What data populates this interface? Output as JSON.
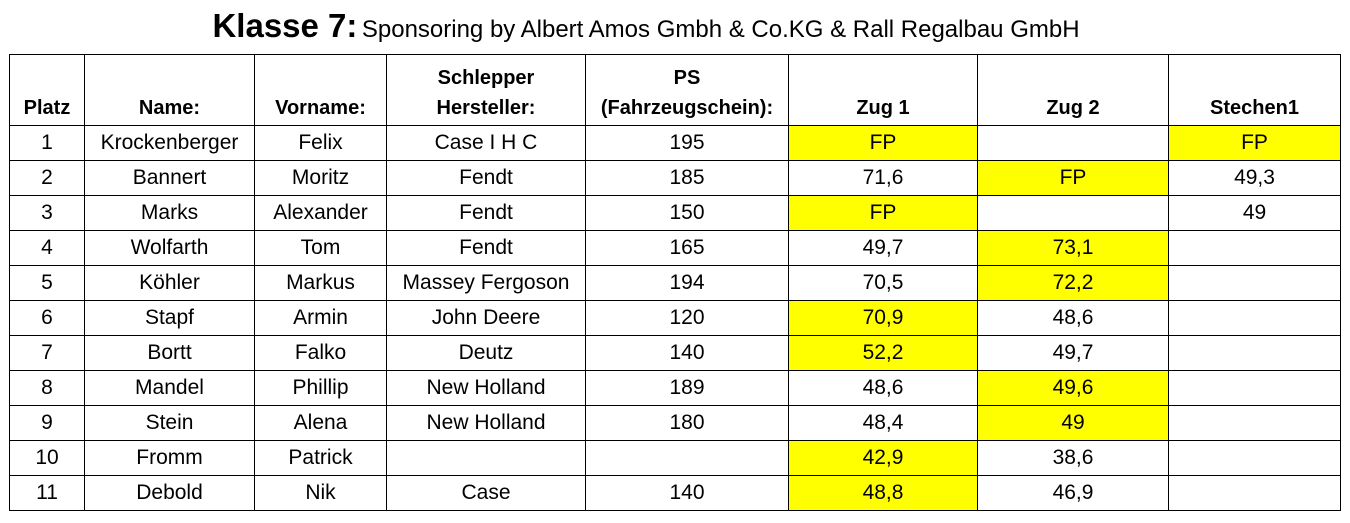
{
  "title": {
    "main": "Klasse 7:",
    "sub": "Sponsoring by Albert Amos Gmbh & Co.KG & Rall Regalbau GmbH"
  },
  "highlight_color": "#ffff00",
  "columns": [
    {
      "key": "platz",
      "label": "Platz"
    },
    {
      "key": "name",
      "label": "Name:"
    },
    {
      "key": "vorname",
      "label": "Vorname:"
    },
    {
      "key": "hersteller",
      "label_line1": "Schlepper",
      "label_line2": "Hersteller:"
    },
    {
      "key": "ps",
      "label_line1": "PS",
      "label_line2": "(Fahrzeugschein):"
    },
    {
      "key": "zug1",
      "label": "Zug 1"
    },
    {
      "key": "zug2",
      "label": "Zug 2"
    },
    {
      "key": "stechen1",
      "label": "Stechen1"
    }
  ],
  "rows": [
    {
      "platz": "1",
      "name": "Krockenberger",
      "vorname": "Felix",
      "hersteller": "Case I H C",
      "ps": "195",
      "zug1": "FP",
      "zug2": "",
      "stechen1": "FP",
      "highlight": [
        "zug1",
        "stechen1"
      ]
    },
    {
      "platz": "2",
      "name": "Bannert",
      "vorname": "Moritz",
      "hersteller": "Fendt",
      "ps": "185",
      "zug1": "71,6",
      "zug2": "FP",
      "stechen1": "49,3",
      "highlight": [
        "zug2"
      ]
    },
    {
      "platz": "3",
      "name": "Marks",
      "vorname": "Alexander",
      "hersteller": "Fendt",
      "ps": "150",
      "zug1": "FP",
      "zug2": "",
      "stechen1": "49",
      "highlight": [
        "zug1"
      ]
    },
    {
      "platz": "4",
      "name": "Wolfarth",
      "vorname": "Tom",
      "hersteller": "Fendt",
      "ps": "165",
      "zug1": "49,7",
      "zug2": "73,1",
      "stechen1": "",
      "highlight": [
        "zug2"
      ]
    },
    {
      "platz": "5",
      "name": "Köhler",
      "vorname": "Markus",
      "hersteller": "Massey Fergoson",
      "ps": "194",
      "zug1": "70,5",
      "zug2": "72,2",
      "stechen1": "",
      "highlight": [
        "zug2"
      ]
    },
    {
      "platz": "6",
      "name": "Stapf",
      "vorname": "Armin",
      "hersteller": "John Deere",
      "ps": "120",
      "zug1": "70,9",
      "zug2": "48,6",
      "stechen1": "",
      "highlight": [
        "zug1"
      ]
    },
    {
      "platz": "7",
      "name": "Bortt",
      "vorname": "Falko",
      "hersteller": "Deutz",
      "ps": "140",
      "zug1": "52,2",
      "zug2": "49,7",
      "stechen1": "",
      "highlight": [
        "zug1"
      ]
    },
    {
      "platz": "8",
      "name": "Mandel",
      "vorname": "Phillip",
      "hersteller": "New Holland",
      "ps": "189",
      "zug1": "48,6",
      "zug2": "49,6",
      "stechen1": "",
      "highlight": [
        "zug2"
      ]
    },
    {
      "platz": "9",
      "name": "Stein",
      "vorname": "Alena",
      "hersteller": "New Holland",
      "ps": "180",
      "zug1": "48,4",
      "zug2": "49",
      "stechen1": "",
      "highlight": [
        "zug2"
      ]
    },
    {
      "platz": "10",
      "name": "Fromm",
      "vorname": "Patrick",
      "hersteller": "",
      "ps": "",
      "zug1": "42,9",
      "zug2": "38,6",
      "stechen1": "",
      "highlight": [
        "zug1"
      ]
    },
    {
      "platz": "11",
      "name": "Debold",
      "vorname": "Nik",
      "hersteller": "Case",
      "ps": "140",
      "zug1": "48,8",
      "zug2": "46,9",
      "stechen1": "",
      "highlight": [
        "zug1"
      ]
    }
  ]
}
